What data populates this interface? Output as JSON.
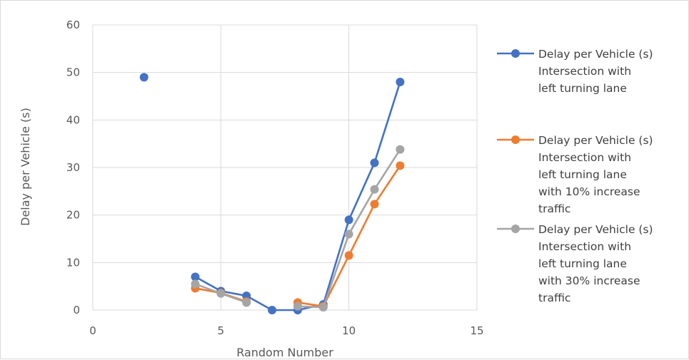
{
  "chart_data": {
    "type": "scatter",
    "xlabel": "Random Number",
    "ylabel": "Delay per Vehicle (s)",
    "xlim": [
      0,
      15
    ],
    "ylim": [
      0,
      60
    ],
    "x_ticks": [
      "0",
      "5",
      "10",
      "15"
    ],
    "y_ticks": [
      "0",
      "10",
      "20",
      "30",
      "40",
      "50",
      "60"
    ],
    "grid": true,
    "legend_position": "right",
    "series": [
      {
        "name": "Delay per Vehicle (s) Intersection with left turning lane",
        "legend_lines": [
          "Delay per Vehicle (s)",
          "Intersection with",
          "left turning lane"
        ],
        "color": "#4472C4",
        "points": [
          [
            2,
            49
          ],
          [
            4,
            7
          ],
          [
            5,
            4
          ],
          [
            6,
            3
          ],
          [
            7,
            0
          ],
          [
            8,
            0
          ],
          [
            9,
            1.2
          ],
          [
            10,
            19
          ],
          [
            11,
            31
          ],
          [
            12,
            48
          ]
        ],
        "segments": [
          [
            [
              4,
              7
            ],
            [
              5,
              4
            ],
            [
              6,
              3
            ],
            [
              7,
              0
            ],
            [
              8,
              0
            ],
            [
              9,
              1.2
            ],
            [
              10,
              19
            ],
            [
              11,
              31
            ],
            [
              12,
              48
            ]
          ]
        ]
      },
      {
        "name": "Delay per Vehicle (s) Intersection with left turning lane with 10% increase traffic",
        "legend_lines": [
          "Delay per Vehicle (s)",
          "Intersection with",
          "left turning lane",
          "with 10% increase",
          "traffic"
        ],
        "color": "#ED7D31",
        "points": [
          [
            4,
            4.6
          ],
          [
            5,
            3.6
          ],
          [
            6,
            1.8
          ],
          [
            8,
            1.6
          ],
          [
            9,
            0.8
          ],
          [
            10,
            11.5
          ],
          [
            11,
            22.3
          ],
          [
            12,
            30.4
          ]
        ],
        "segments": [
          [
            [
              4,
              4.6
            ],
            [
              5,
              3.6
            ],
            [
              6,
              1.8
            ]
          ],
          [
            [
              8,
              1.6
            ],
            [
              9,
              0.8
            ],
            [
              10,
              11.5
            ],
            [
              11,
              22.3
            ],
            [
              12,
              30.4
            ]
          ]
        ]
      },
      {
        "name": "Delay per Vehicle (s) Intersection with left turning lane with 30% increase traffic",
        "legend_lines": [
          "Delay per Vehicle (s)",
          "Intersection with",
          "left turning lane",
          "with 30% increase",
          "traffic"
        ],
        "color": "#A5A5A5",
        "points": [
          [
            4,
            5.5
          ],
          [
            5,
            3.5
          ],
          [
            6,
            1.6
          ],
          [
            8,
            0.8
          ],
          [
            9,
            0.6
          ],
          [
            10,
            16
          ],
          [
            11,
            25.4
          ],
          [
            12,
            33.8
          ]
        ],
        "segments": [
          [
            [
              4,
              5.5
            ],
            [
              5,
              3.5
            ],
            [
              6,
              1.6
            ]
          ],
          [
            [
              8,
              0.8
            ],
            [
              9,
              0.6
            ],
            [
              10,
              16
            ],
            [
              11,
              25.4
            ],
            [
              12,
              33.8
            ]
          ]
        ]
      }
    ]
  }
}
